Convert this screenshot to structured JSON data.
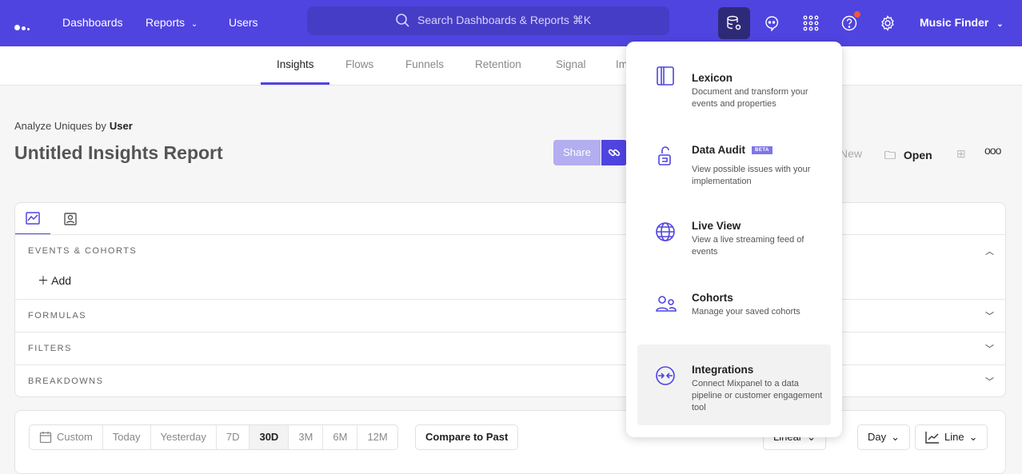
{
  "nav": {
    "items": [
      "Dashboards",
      "Reports",
      "Users"
    ],
    "search_placeholder": "Search Dashboards & Reports ⌘K",
    "project": "Music Finder",
    "accent": "#4f44e0"
  },
  "tabs": [
    "Insights",
    "Flows",
    "Funnels",
    "Retention",
    "Signal",
    "Im"
  ],
  "header": {
    "analyze_label": "Analyze Uniques by",
    "analyze_value": "User",
    "title": "Untitled Insights Report",
    "share": "Share",
    "new": "New",
    "open": "Open"
  },
  "query": {
    "sections": [
      "EVENTS & COHORTS",
      "FORMULAS",
      "FILTERS",
      "BREAKDOWNS"
    ],
    "add": "Add"
  },
  "controls": {
    "ranges": [
      "Custom",
      "Today",
      "Yesterday",
      "7D",
      "30D",
      "3M",
      "6M",
      "12M"
    ],
    "selected": "30D",
    "compare": "Compare to Past",
    "scale": "Linear",
    "interval": "Day",
    "chart_type": "Line"
  },
  "menu": {
    "items": [
      {
        "title": "Lexicon",
        "desc": "Document and transform your events and properties"
      },
      {
        "title": "Data Audit",
        "badge": "BETA",
        "desc": "View possible issues with your implementation"
      },
      {
        "title": "Live View",
        "desc": "View a live streaming feed of events"
      },
      {
        "title": "Cohorts",
        "desc": "Manage your saved cohorts"
      },
      {
        "title": "Integrations",
        "desc": "Connect Mixpanel to a data pipeline or customer engagement tool"
      }
    ]
  }
}
